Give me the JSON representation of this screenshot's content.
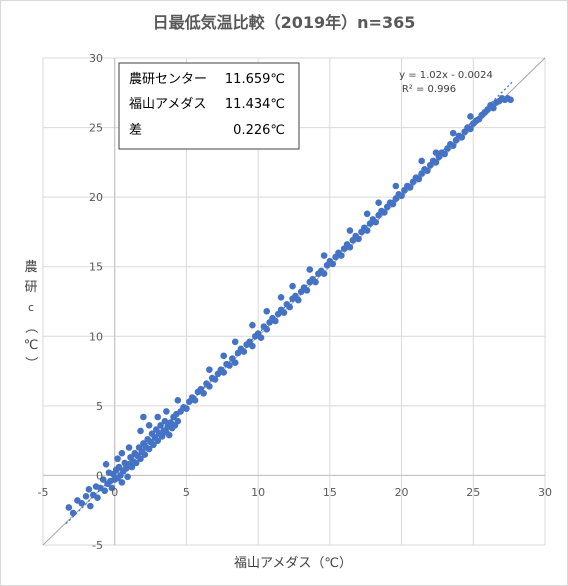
{
  "chart_data": {
    "type": "scatter",
    "title": "日最低気温比較（2019年）n=365",
    "xlabel": "福山アメダス（℃）",
    "ylabel_chars": [
      "農",
      "研",
      "c",
      "（",
      "℃",
      "）"
    ],
    "xlim": [
      -5,
      30
    ],
    "ylim": [
      -5,
      30
    ],
    "x_ticks": [
      -5,
      0,
      5,
      10,
      15,
      20,
      25,
      30
    ],
    "y_ticks": [
      -5,
      0,
      5,
      10,
      15,
      20,
      25,
      30
    ],
    "x_tick_labels": [
      "-5",
      "0",
      "5",
      "10",
      "15",
      "20",
      "25",
      "30"
    ],
    "y_tick_labels": [
      "-5",
      "0",
      "5",
      "10",
      "15",
      "20",
      "25",
      "30"
    ],
    "grid": true,
    "point_color": "#4472c4",
    "trendline": {
      "slope": 1.02,
      "intercept": -0.0024,
      "equation": "y = 1.02x - 0.0024",
      "r2": "R² = 0.996",
      "style": "dotted"
    },
    "stats_box": [
      {
        "label": "農研センター",
        "value": "11.659℃"
      },
      {
        "label": "福山アメダス",
        "value": "11.434℃"
      },
      {
        "label": "差",
        "value": "0.226℃"
      }
    ],
    "points": [
      [
        -3.2,
        -2.3
      ],
      [
        -2.9,
        -2.7
      ],
      [
        -2.6,
        -1.8
      ],
      [
        -2.3,
        -2.0
      ],
      [
        -2.0,
        -1.5
      ],
      [
        -1.8,
        -1.0
      ],
      [
        -1.7,
        -2.2
      ],
      [
        -1.5,
        -1.4
      ],
      [
        -1.3,
        -0.8
      ],
      [
        -1.2,
        -1.6
      ],
      [
        -1.0,
        -0.9
      ],
      [
        -0.8,
        -0.3
      ],
      [
        -0.7,
        -1.1
      ],
      [
        -0.5,
        -0.6
      ],
      [
        -0.4,
        0.2
      ],
      [
        -0.3,
        -0.4
      ],
      [
        -0.2,
        -0.9
      ],
      [
        -0.1,
        0.1
      ],
      [
        0.0,
        -0.3
      ],
      [
        0.1,
        0.4
      ],
      [
        0.2,
        -0.2
      ],
      [
        0.3,
        0.6
      ],
      [
        0.4,
        0.0
      ],
      [
        0.5,
        -0.5
      ],
      [
        0.6,
        0.3
      ],
      [
        0.7,
        0.9
      ],
      [
        0.8,
        0.5
      ],
      [
        0.9,
        -0.1
      ],
      [
        1.0,
        0.8
      ],
      [
        1.1,
        1.3
      ],
      [
        1.2,
        0.6
      ],
      [
        1.3,
        1.0
      ],
      [
        1.4,
        1.6
      ],
      [
        1.5,
        0.9
      ],
      [
        1.6,
        1.4
      ],
      [
        1.7,
        2.0
      ],
      [
        1.8,
        1.2
      ],
      [
        1.9,
        1.7
      ],
      [
        2.0,
        2.3
      ],
      [
        2.1,
        1.5
      ],
      [
        2.2,
        2.0
      ],
      [
        2.3,
        2.6
      ],
      [
        2.4,
        1.9
      ],
      [
        2.5,
        2.4
      ],
      [
        2.6,
        3.0
      ],
      [
        2.7,
        2.2
      ],
      [
        2.8,
        2.7
      ],
      [
        2.9,
        3.3
      ],
      [
        3.0,
        2.5
      ],
      [
        3.1,
        3.0
      ],
      [
        3.2,
        3.6
      ],
      [
        3.3,
        2.8
      ],
      [
        3.4,
        3.2
      ],
      [
        3.5,
        3.9
      ],
      [
        3.6,
        3.1
      ],
      [
        3.7,
        3.5
      ],
      [
        3.8,
        2.9
      ],
      [
        3.9,
        3.8
      ],
      [
        4.0,
        3.4
      ],
      [
        4.1,
        4.2
      ],
      [
        4.2,
        3.6
      ],
      [
        4.3,
        4.4
      ],
      [
        4.4,
        3.9
      ],
      [
        4.6,
        4.6
      ],
      [
        4.8,
        4.9
      ],
      [
        5.0,
        4.8
      ],
      [
        5.2,
        5.3
      ],
      [
        5.4,
        5.6
      ],
      [
        5.6,
        5.4
      ],
      [
        5.8,
        6.0
      ],
      [
        6.0,
        6.2
      ],
      [
        6.2,
        5.9
      ],
      [
        6.4,
        6.6
      ],
      [
        6.6,
        6.4
      ],
      [
        6.8,
        7.0
      ],
      [
        7.0,
        6.9
      ],
      [
        7.2,
        7.3
      ],
      [
        7.4,
        7.6
      ],
      [
        7.6,
        7.4
      ],
      [
        7.8,
        8.0
      ],
      [
        8.0,
        7.9
      ],
      [
        8.2,
        8.4
      ],
      [
        8.4,
        8.1
      ],
      [
        8.6,
        8.8
      ],
      [
        8.8,
        9.1
      ],
      [
        9.0,
        8.9
      ],
      [
        9.2,
        9.4
      ],
      [
        9.4,
        9.6
      ],
      [
        9.6,
        9.3
      ],
      [
        9.8,
        10.0
      ],
      [
        10.0,
        10.2
      ],
      [
        10.2,
        9.9
      ],
      [
        10.4,
        10.7
      ],
      [
        10.6,
        10.5
      ],
      [
        10.8,
        11.0
      ],
      [
        11.0,
        11.3
      ],
      [
        11.2,
        11.1
      ],
      [
        11.4,
        11.6
      ],
      [
        11.6,
        11.9
      ],
      [
        11.8,
        11.7
      ],
      [
        12.0,
        12.3
      ],
      [
        12.2,
        12.1
      ],
      [
        12.4,
        12.7
      ],
      [
        12.6,
        12.9
      ],
      [
        12.8,
        12.6
      ],
      [
        13.0,
        13.2
      ],
      [
        13.2,
        13.5
      ],
      [
        13.4,
        13.3
      ],
      [
        13.6,
        13.9
      ],
      [
        13.8,
        14.1
      ],
      [
        14.0,
        13.9
      ],
      [
        14.2,
        14.5
      ],
      [
        14.4,
        14.7
      ],
      [
        14.6,
        14.5
      ],
      [
        14.8,
        15.1
      ],
      [
        15.0,
        15.4
      ],
      [
        15.2,
        15.2
      ],
      [
        15.4,
        15.7
      ],
      [
        15.6,
        16.0
      ],
      [
        15.8,
        15.8
      ],
      [
        16.0,
        16.3
      ],
      [
        16.2,
        16.6
      ],
      [
        16.4,
        16.4
      ],
      [
        16.6,
        16.9
      ],
      [
        16.8,
        17.2
      ],
      [
        17.0,
        17.0
      ],
      [
        17.2,
        17.5
      ],
      [
        17.4,
        17.8
      ],
      [
        17.6,
        17.6
      ],
      [
        17.8,
        18.1
      ],
      [
        18.0,
        18.4
      ],
      [
        18.2,
        18.2
      ],
      [
        18.4,
        18.7
      ],
      [
        18.6,
        19.0
      ],
      [
        18.8,
        18.9
      ],
      [
        19.0,
        19.3
      ],
      [
        19.2,
        19.6
      ],
      [
        19.4,
        19.5
      ],
      [
        19.6,
        19.9
      ],
      [
        19.8,
        20.2
      ],
      [
        20.0,
        20.1
      ],
      [
        20.2,
        20.5
      ],
      [
        20.4,
        20.8
      ],
      [
        20.6,
        20.7
      ],
      [
        20.8,
        21.1
      ],
      [
        21.0,
        21.4
      ],
      [
        21.2,
        21.3
      ],
      [
        21.4,
        21.7
      ],
      [
        21.6,
        22.0
      ],
      [
        21.8,
        21.9
      ],
      [
        22.0,
        22.3
      ],
      [
        22.2,
        22.6
      ],
      [
        22.4,
        22.5
      ],
      [
        22.6,
        22.9
      ],
      [
        22.8,
        23.2
      ],
      [
        23.0,
        23.1
      ],
      [
        23.2,
        23.5
      ],
      [
        23.4,
        23.8
      ],
      [
        23.6,
        23.7
      ],
      [
        23.8,
        24.1
      ],
      [
        24.0,
        24.4
      ],
      [
        24.2,
        24.3
      ],
      [
        24.4,
        24.7
      ],
      [
        24.6,
        25.0
      ],
      [
        24.8,
        24.9
      ],
      [
        25.0,
        25.3
      ],
      [
        25.2,
        25.5
      ],
      [
        25.4,
        25.6
      ],
      [
        25.6,
        25.9
      ],
      [
        25.8,
        26.1
      ],
      [
        26.0,
        26.3
      ],
      [
        26.2,
        26.6
      ],
      [
        26.4,
        26.4
      ],
      [
        26.6,
        26.8
      ],
      [
        26.8,
        26.9
      ],
      [
        27.0,
        27.1
      ],
      [
        27.2,
        27.0
      ],
      [
        27.4,
        27.1
      ],
      [
        27.6,
        27.0
      ],
      [
        0.5,
        1.6
      ],
      [
        1.0,
        2.0
      ],
      [
        1.8,
        3.2
      ],
      [
        2.4,
        3.6
      ],
      [
        3.6,
        4.6
      ],
      [
        6.6,
        7.6
      ],
      [
        7.6,
        8.6
      ],
      [
        9.6,
        10.8
      ],
      [
        12.4,
        13.6
      ],
      [
        14.6,
        15.8
      ],
      [
        17.6,
        18.8
      ],
      [
        19.6,
        20.8
      ],
      [
        22.4,
        23.2
      ],
      [
        2.0,
        4.2
      ],
      [
        11.6,
        12.8
      ],
      [
        16.4,
        17.6
      ],
      [
        -0.6,
        0.8
      ],
      [
        0.2,
        1.2
      ],
      [
        3.0,
        4.2
      ],
      [
        4.4,
        5.4
      ],
      [
        8.4,
        9.6
      ],
      [
        10.6,
        11.8
      ],
      [
        13.6,
        14.8
      ],
      [
        18.4,
        19.6
      ],
      [
        21.4,
        22.6
      ],
      [
        23.6,
        24.6
      ],
      [
        24.8,
        25.8
      ]
    ]
  }
}
